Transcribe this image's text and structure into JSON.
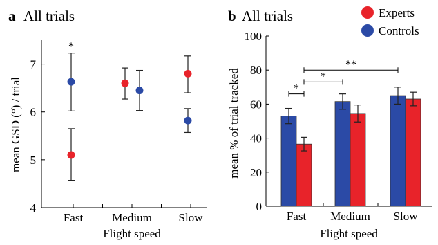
{
  "chart_data": [
    {
      "panel_letter": "a",
      "title": "All trials",
      "type": "scatter",
      "xlabel": "Flight speed",
      "ylabel": "mean GSD (°) / trial",
      "categories": [
        "Fast",
        "Medium",
        "Slow"
      ],
      "ylim": [
        4,
        7.5
      ],
      "yticks": [
        4,
        5,
        6,
        7
      ],
      "grid": false,
      "series": [
        {
          "name": "Experts",
          "color": "#e8232a",
          "values": [
            5.1,
            6.6,
            6.8
          ],
          "err_low": [
            4.57,
            6.27,
            6.4
          ],
          "err_high": [
            5.65,
            6.92,
            7.17
          ]
        },
        {
          "name": "Controls",
          "color": "#2b4aa6",
          "values": [
            6.63,
            6.45,
            5.82
          ],
          "err_low": [
            6.02,
            6.03,
            5.57
          ],
          "err_high": [
            7.23,
            6.87,
            6.07
          ]
        }
      ],
      "annotations": [
        {
          "category": "Fast",
          "text": "*"
        }
      ]
    },
    {
      "panel_letter": "b",
      "title": "All trials",
      "type": "bar",
      "xlabel": "Flight speed",
      "ylabel": "mean % of trial tracked",
      "categories": [
        "Fast",
        "Medium",
        "Slow"
      ],
      "ylim": [
        0,
        100
      ],
      "yticks": [
        0,
        20,
        40,
        60,
        80,
        100
      ],
      "grid": false,
      "legend_position": "top-right",
      "series": [
        {
          "name": "Controls",
          "color": "#2b4aa6",
          "values": [
            53,
            61.5,
            65
          ],
          "err": [
            4.5,
            4.5,
            5
          ]
        },
        {
          "name": "Experts",
          "color": "#e8232a",
          "values": [
            36.5,
            54.5,
            63
          ],
          "err": [
            4,
            5,
            4
          ]
        }
      ],
      "significance": [
        {
          "from": "Fast-Controls",
          "to": "Fast-Experts",
          "level": 66,
          "text": "*"
        },
        {
          "from": "Fast-Experts",
          "to": "Medium-Controls",
          "level": 73,
          "text": "*"
        },
        {
          "from": "Fast-Experts",
          "to": "Slow-Controls",
          "level": 80,
          "text": "**"
        }
      ]
    }
  ],
  "legend": [
    {
      "label": "Experts",
      "color": "#e8232a"
    },
    {
      "label": "Controls",
      "color": "#2b4aa6"
    }
  ]
}
